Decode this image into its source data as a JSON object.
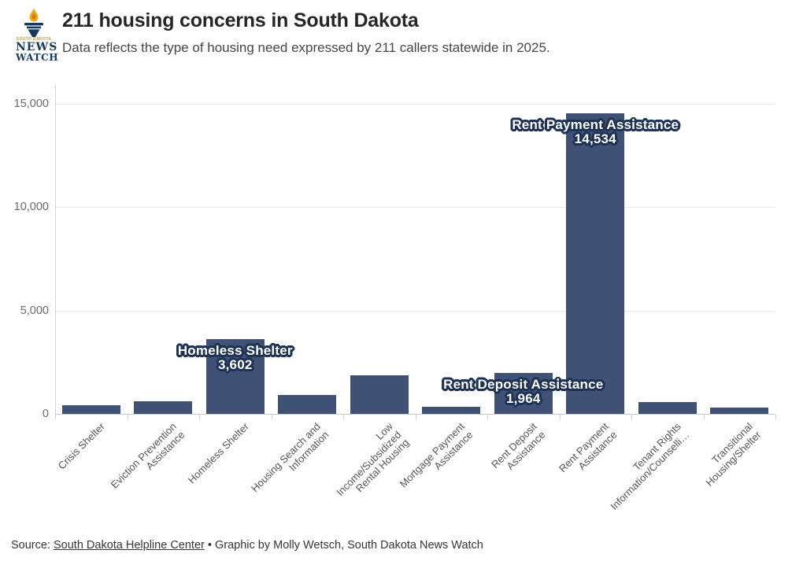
{
  "header": {
    "title": "211 housing concerns in South Dakota",
    "subtitle": "Data reflects the type of housing need expressed by 211 callers statewide in 2025.",
    "logo": {
      "line1": "SOUTH DAKOTA",
      "line2": "NEWS",
      "line3": "WATCH"
    }
  },
  "chart_data": {
    "type": "bar",
    "title": "211 housing concerns in South Dakota",
    "subtitle": "Data reflects the type of housing need expressed by 211 callers statewide in 2025.",
    "categories": [
      "Crisis Shelter",
      "Eviction Prevention\nAssistance",
      "Homeless Shelter",
      "Housing Search and\nInformation",
      "Low\nIncome/Subsidized\nRental Housing",
      "Mortgage Payment\nAssistance",
      "Rent Deposit\nAssistance",
      "Rent Payment\nAssistance",
      "Tenant Rights\nInformation/Counselli…",
      "Transitional\nHousing/Shelter"
    ],
    "values": [
      400,
      600,
      3602,
      900,
      1850,
      350,
      1964,
      14534,
      560,
      300
    ],
    "ylim": [
      0,
      15500
    ],
    "yticks": [
      0,
      5000,
      10000,
      15000
    ],
    "ytick_labels": [
      "0",
      "5,000",
      "10,000",
      "15,000"
    ],
    "grid": "horizontal",
    "legend": "none",
    "bar_color": "#3f5174",
    "annotation_outline_color": "#1e3255",
    "annotations": [
      {
        "category_index": 2,
        "label": "Homeless Shelter",
        "value_label": "3,602"
      },
      {
        "category_index": 6,
        "label": "Rent Deposit Assistance",
        "value_label": "1,964"
      },
      {
        "category_index": 7,
        "label": "Rent Payment Assistance",
        "value_label": "14,534"
      }
    ]
  },
  "footer": {
    "prefix": "Source: ",
    "source_link": "South Dakota Helpline Center",
    "suffix": " • Graphic by Molly Wetsch, South Dakota News Watch"
  }
}
